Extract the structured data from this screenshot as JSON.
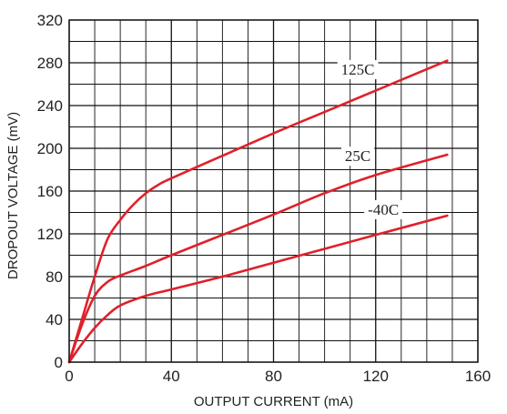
{
  "chart_data": {
    "type": "line",
    "xlabel": "OUTPUT CURRENT (mA)",
    "ylabel": "DROPOUT VOLTAGE (mV)",
    "xlim": [
      0,
      160
    ],
    "ylim": [
      0,
      320
    ],
    "x_ticks": [
      0,
      40,
      80,
      120,
      160
    ],
    "y_ticks": [
      0,
      40,
      80,
      120,
      160,
      200,
      240,
      280,
      320
    ],
    "x_tick_labels": [
      "0",
      "40",
      "80",
      "120",
      "160"
    ],
    "y_tick_labels": [
      "0",
      "40",
      "80",
      "120",
      "160",
      "200",
      "240",
      "280",
      "320"
    ],
    "grid": true,
    "line_color": "#e0202a",
    "series": [
      {
        "name": "125C",
        "x": [
          0,
          5,
          10,
          15,
          20,
          25,
          30,
          35,
          40,
          60,
          80,
          100,
          120,
          148
        ],
        "y": [
          0,
          40,
          80,
          115,
          133,
          147,
          158,
          166,
          172,
          193,
          214,
          234,
          254,
          282
        ]
      },
      {
        "name": "25C",
        "x": [
          0,
          5,
          10,
          15,
          20,
          30,
          40,
          60,
          80,
          100,
          120,
          148
        ],
        "y": [
          0,
          35,
          62,
          75,
          81,
          90,
          100,
          119,
          138,
          158,
          175,
          194
        ]
      },
      {
        "name": "-40C",
        "x": [
          0,
          5,
          10,
          15,
          20,
          30,
          40,
          60,
          80,
          100,
          120,
          148
        ],
        "y": [
          0,
          17,
          32,
          44,
          53,
          62,
          68,
          80,
          93,
          106,
          119,
          137
        ]
      }
    ],
    "series_label_positions": [
      {
        "name": "125C",
        "x": 113,
        "y": 274
      },
      {
        "name": "25C",
        "x": 113,
        "y": 193
      },
      {
        "name": "-40C",
        "x": 123,
        "y": 143
      }
    ]
  }
}
